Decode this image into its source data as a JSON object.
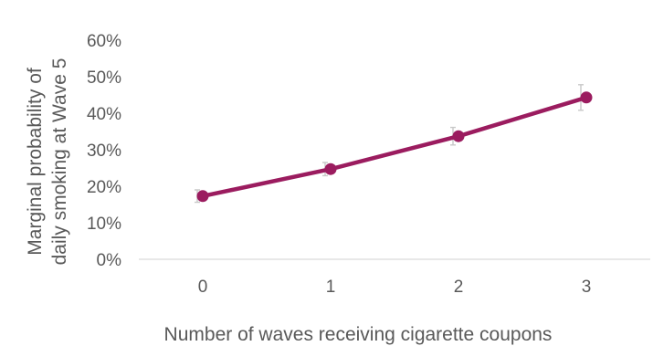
{
  "chart_data": {
    "type": "line",
    "title": "",
    "xlabel": "Number of waves receiving cigarette coupons",
    "ylabel_lines": [
      "Marginal probability of",
      "daily smoking at Wave 5"
    ],
    "categories": [
      "0",
      "1",
      "2",
      "3"
    ],
    "series": [
      {
        "values": [
          17.3,
          24.7,
          33.7,
          44.3
        ],
        "ci_lower": [
          15.6,
          22.9,
          31.3,
          40.8
        ],
        "ci_upper": [
          19.0,
          26.5,
          36.1,
          47.8
        ],
        "color": "#9b1c5f"
      }
    ],
    "ylim": [
      0,
      60
    ],
    "yticks": [
      0,
      10,
      20,
      30,
      40,
      50,
      60
    ],
    "ytick_labels": [
      "0%",
      "10%",
      "20%",
      "30%",
      "40%",
      "50%",
      "60%"
    ],
    "grid": false,
    "legend": "none"
  }
}
